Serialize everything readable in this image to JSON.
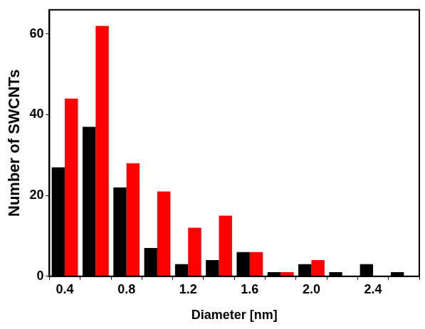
{
  "chart_data": {
    "type": "bar",
    "x_label": "Diameter [nm]",
    "y_label": "Number of SWCNTs",
    "categories": [
      "0.4",
      null,
      "0.8",
      null,
      "1.2",
      null,
      "1.6",
      null,
      "2.0",
      null,
      "2.4",
      null
    ],
    "series": [
      {
        "color": "#000000",
        "values": [
          27,
          37,
          22,
          7,
          3,
          4,
          6,
          1,
          3,
          1,
          3,
          1
        ]
      },
      {
        "color": "#ff0000",
        "values": [
          44,
          62,
          28,
          21,
          12,
          15,
          6,
          1,
          4,
          0,
          0,
          0
        ]
      }
    ],
    "ylim": [
      0,
      66
    ],
    "yticks": [
      0,
      20,
      40,
      60
    ],
    "grid": false
  }
}
